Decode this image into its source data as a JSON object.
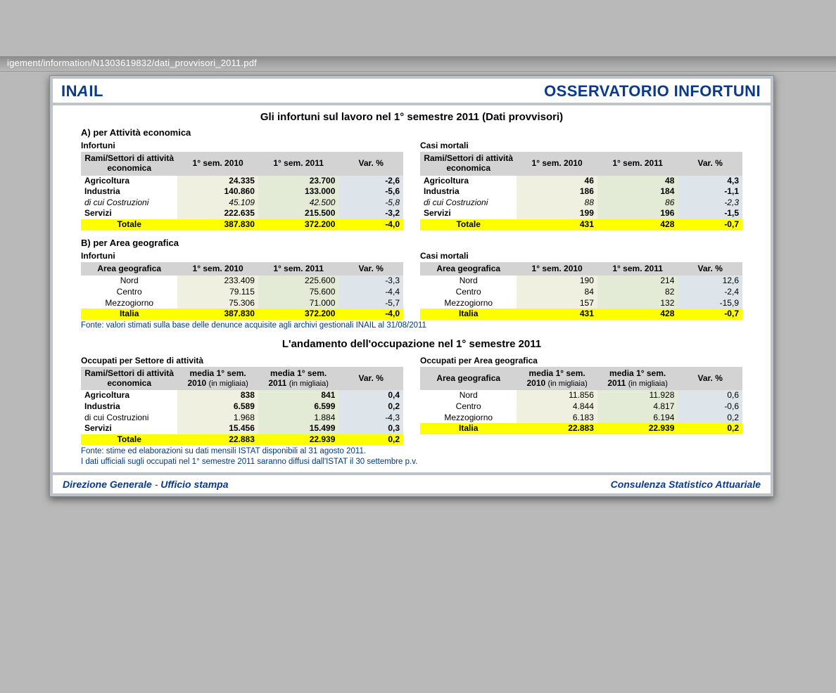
{
  "url_fragment": "igement/information/N1303619832/dati_provvisori_2011.pdf",
  "logo_text": "INAIL",
  "header_title": "OSSERVATORIO INFORTUNI",
  "main_title": "Gli infortuni sul lavoro nel 1° semestre 2011 (Dati provvisori)",
  "section_a_label": "A) per Attività economica",
  "section_b_label": "B) per Area geografica",
  "tbl_infortuni_label": "Infortuni",
  "tbl_casi_label": "Casi mortali",
  "hdr_settore": "Rami/Settori di attività economica",
  "hdr_area": "Area geografica",
  "hdr_2010": "1° sem. 2010",
  "hdr_2011": "1° sem. 2011",
  "hdr_var": "Var. %",
  "hdr_media_2010_a": "media 1° sem. 2010",
  "hdr_media_2010_b": "(in migliaia)",
  "hdr_media_2011_a": "media 1° sem. 2011",
  "hdr_media_2011_b": "(in migliaia)",
  "rows_a_left": [
    {
      "lab": "Agricoltura",
      "c2010": "24.335",
      "c2011": "23.700",
      "var": "-2,6",
      "bold": true
    },
    {
      "lab": "Industria",
      "c2010": "140.860",
      "c2011": "133.000",
      "var": "-5,6",
      "bold": true
    },
    {
      "lab": "di cui Costruzioni",
      "c2010": "45.109",
      "c2011": "42.500",
      "var": "-5,8",
      "ital": true
    },
    {
      "lab": "Servizi",
      "c2010": "222.635",
      "c2011": "215.500",
      "var": "-3,2",
      "bold": true
    }
  ],
  "total_a_left": {
    "lab": "Totale",
    "c2010": "387.830",
    "c2011": "372.200",
    "var": "-4,0"
  },
  "rows_a_right": [
    {
      "lab": "Agricoltura",
      "c2010": "46",
      "c2011": "48",
      "var": "4,3",
      "bold": true
    },
    {
      "lab": "Industria",
      "c2010": "186",
      "c2011": "184",
      "var": "-1,1",
      "bold": true
    },
    {
      "lab": "di cui Costruzioni",
      "c2010": "88",
      "c2011": "86",
      "var": "-2,3",
      "ital": true
    },
    {
      "lab": "Servizi",
      "c2010": "199",
      "c2011": "196",
      "var": "-1,5",
      "bold": true
    }
  ],
  "total_a_right": {
    "lab": "Totale",
    "c2010": "431",
    "c2011": "428",
    "var": "-0,7"
  },
  "rows_b_left": [
    {
      "lab": "Nord",
      "c2010": "233.409",
      "c2011": "225.600",
      "var": "-3,3"
    },
    {
      "lab": "Centro",
      "c2010": "79.115",
      "c2011": "75.600",
      "var": "-4,4"
    },
    {
      "lab": "Mezzogiorno",
      "c2010": "75.306",
      "c2011": "71.000",
      "var": "-5,7"
    }
  ],
  "total_b_left": {
    "lab": "Italia",
    "c2010": "387.830",
    "c2011": "372.200",
    "var": "-4,0"
  },
  "rows_b_right": [
    {
      "lab": "Nord",
      "c2010": "190",
      "c2011": "214",
      "var": "12,6"
    },
    {
      "lab": "Centro",
      "c2010": "84",
      "c2011": "82",
      "var": "-2,4"
    },
    {
      "lab": "Mezzogiorno",
      "c2010": "157",
      "c2011": "132",
      "var": "-15,9"
    }
  ],
  "total_b_right": {
    "lab": "Italia",
    "c2010": "431",
    "c2011": "428",
    "var": "-0,7"
  },
  "fonte1": "Fonte: valori stimati sulla base delle denunce acquisite agli archivi gestionali INAIL al 31/08/2011",
  "mid_title": "L'andamento dell'occupazione nel 1° semestre 2011",
  "occ_left_label": "Occupati per Settore di attività",
  "occ_right_label": "Occupati per Area geografica",
  "rows_c_left": [
    {
      "lab": "Agricoltura",
      "c2010": "838",
      "c2011": "841",
      "var": "0,4",
      "bold": true
    },
    {
      "lab": "Industria",
      "c2010": "6.589",
      "c2011": "6.599",
      "var": "0,2",
      "bold": true
    },
    {
      "lab": "di cui Costruzioni",
      "c2010": "1.968",
      "c2011": "1.884",
      "var": "-4,3"
    },
    {
      "lab": "Servizi",
      "c2010": "15.456",
      "c2011": "15.499",
      "var": "0,3",
      "bold": true
    }
  ],
  "total_c_left": {
    "lab": "Totale",
    "c2010": "22.883",
    "c2011": "22.939",
    "var": "0,2"
  },
  "rows_c_right": [
    {
      "lab": "Nord",
      "c2010": "11.856",
      "c2011": "11.928",
      "var": "0,6"
    },
    {
      "lab": "Centro",
      "c2010": "4.844",
      "c2011": "4.817",
      "var": "-0,6"
    },
    {
      "lab": "Mezzogiorno",
      "c2010": "6.183",
      "c2011": "6.194",
      "var": "0,2"
    }
  ],
  "total_c_right": {
    "lab": "Italia",
    "c2010": "22.883",
    "c2011": "22.939",
    "var": "0,2"
  },
  "fonte2a": "Fonte: stime ed elaborazioni su dati mensili ISTAT disponibili al 31 agosto 2011.",
  "fonte2b": "I dati ufficiali sugli occupati nel 1° semestre 2011 saranno diffusi dall'ISTAT il 30 settembre p.v.",
  "footer_left_a": "Direzione Generale",
  "footer_left_b": "Ufficio stampa",
  "footer_right": "Consulenza Statistico Attuariale",
  "colors": {
    "page_bg": "#b9b9b9",
    "frame_bg": "#bdc3c8",
    "brand": "#0a3a8a",
    "th_bg": "#d4d3d3",
    "cell_cream": "#f0f0e0",
    "cell_green": "#e3ead6",
    "cell_blue": "#dde4ea",
    "highlight": "#ffff00"
  }
}
